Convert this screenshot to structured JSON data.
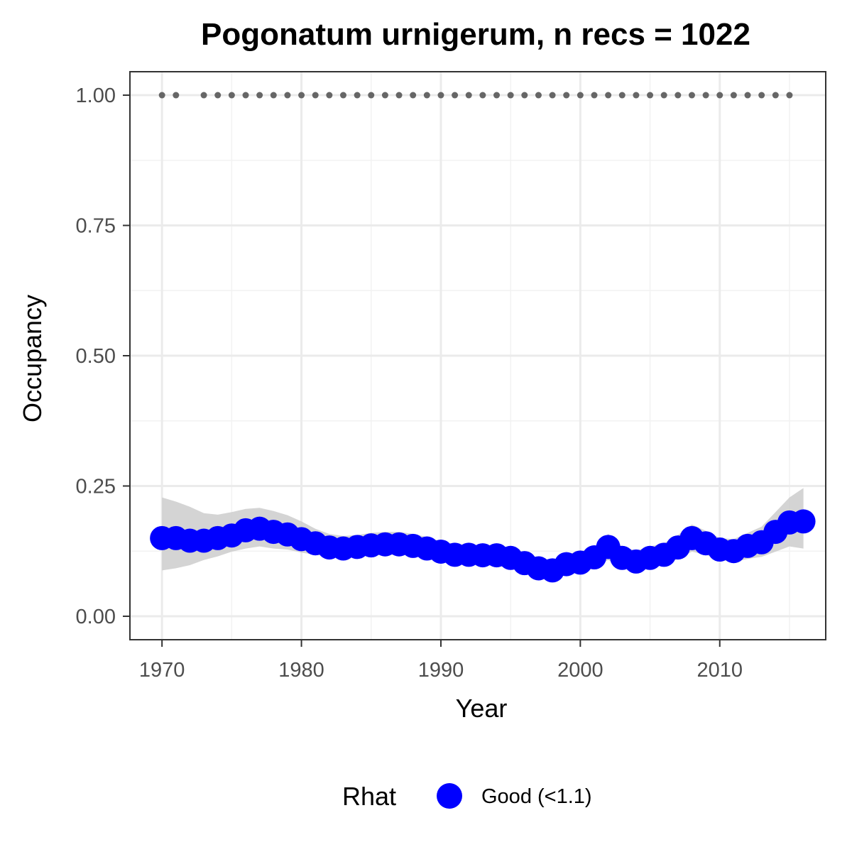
{
  "chart_data": {
    "type": "line",
    "title": "Pogonatum urnigerum, n recs = 1022",
    "xlabel": "Year",
    "ylabel": "Occupancy",
    "xlim": [
      1967.7,
      2017.6
    ],
    "ylim": [
      -0.045,
      1.045
    ],
    "x_ticks": [
      1970,
      1980,
      1990,
      2000,
      2010
    ],
    "x_tick_labels": [
      "1970",
      "1980",
      "1990",
      "2000",
      "2010"
    ],
    "y_ticks": [
      0,
      0.25,
      0.5,
      0.75,
      1.0
    ],
    "y_tick_labels": [
      "0.00",
      "0.25",
      "0.50",
      "0.75",
      "1.00"
    ],
    "grid": true,
    "x": [
      1970,
      1971,
      1972,
      1973,
      1974,
      1975,
      1976,
      1977,
      1978,
      1979,
      1980,
      1981,
      1982,
      1983,
      1984,
      1985,
      1986,
      1987,
      1988,
      1989,
      1990,
      1991,
      1992,
      1993,
      1994,
      1995,
      1996,
      1997,
      1998,
      1999,
      2000,
      2001,
      2002,
      2003,
      2004,
      2005,
      2006,
      2007,
      2008,
      2009,
      2010,
      2011,
      2012,
      2013,
      2014,
      2015,
      2016
    ],
    "series": [
      {
        "name": "Good (<1.1)",
        "color": "#0000ff",
        "values": [
          0.15,
          0.15,
          0.145,
          0.145,
          0.15,
          0.155,
          0.165,
          0.168,
          0.162,
          0.157,
          0.148,
          0.14,
          0.132,
          0.13,
          0.133,
          0.136,
          0.138,
          0.138,
          0.135,
          0.13,
          0.124,
          0.118,
          0.118,
          0.117,
          0.117,
          0.112,
          0.102,
          0.092,
          0.088,
          0.1,
          0.103,
          0.113,
          0.133,
          0.112,
          0.105,
          0.112,
          0.118,
          0.132,
          0.15,
          0.14,
          0.128,
          0.125,
          0.135,
          0.142,
          0.162,
          0.18,
          0.182
        ],
        "lower": [
          0.088,
          0.092,
          0.098,
          0.108,
          0.115,
          0.124,
          0.13,
          0.134,
          0.13,
          0.128,
          0.122,
          0.118,
          0.114,
          0.112,
          0.113,
          0.116,
          0.118,
          0.118,
          0.116,
          0.112,
          0.106,
          0.102,
          0.1,
          0.098,
          0.097,
          0.092,
          0.082,
          0.074,
          0.07,
          0.08,
          0.084,
          0.094,
          0.108,
          0.094,
          0.086,
          0.092,
          0.098,
          0.11,
          0.124,
          0.118,
          0.108,
          0.104,
          0.11,
          0.114,
          0.124,
          0.134,
          0.13
        ],
        "upper": [
          0.228,
          0.22,
          0.21,
          0.198,
          0.195,
          0.2,
          0.206,
          0.208,
          0.202,
          0.194,
          0.182,
          0.168,
          0.158,
          0.154,
          0.156,
          0.16,
          0.162,
          0.162,
          0.158,
          0.152,
          0.144,
          0.138,
          0.138,
          0.136,
          0.136,
          0.132,
          0.122,
          0.112,
          0.108,
          0.12,
          0.124,
          0.134,
          0.158,
          0.134,
          0.126,
          0.134,
          0.14,
          0.156,
          0.176,
          0.164,
          0.15,
          0.148,
          0.16,
          0.172,
          0.2,
          0.228,
          0.246
        ]
      }
    ],
    "record_years": [
      1970,
      1971,
      1973,
      1974,
      1975,
      1976,
      1977,
      1978,
      1979,
      1980,
      1981,
      1982,
      1983,
      1984,
      1985,
      1986,
      1987,
      1988,
      1989,
      1990,
      1991,
      1992,
      1993,
      1994,
      1995,
      1996,
      1997,
      1998,
      1999,
      2000,
      2001,
      2002,
      2003,
      2004,
      2005,
      2006,
      2007,
      2008,
      2009,
      2010,
      2011,
      2012,
      2013,
      2014,
      2015
    ],
    "record_value": 1.0,
    "record_color": "#666666",
    "ribbon_color": "#cccccc",
    "legend": {
      "title": "Rhat",
      "entries": [
        "Good (<1.1)"
      ],
      "position": "bottom"
    }
  }
}
